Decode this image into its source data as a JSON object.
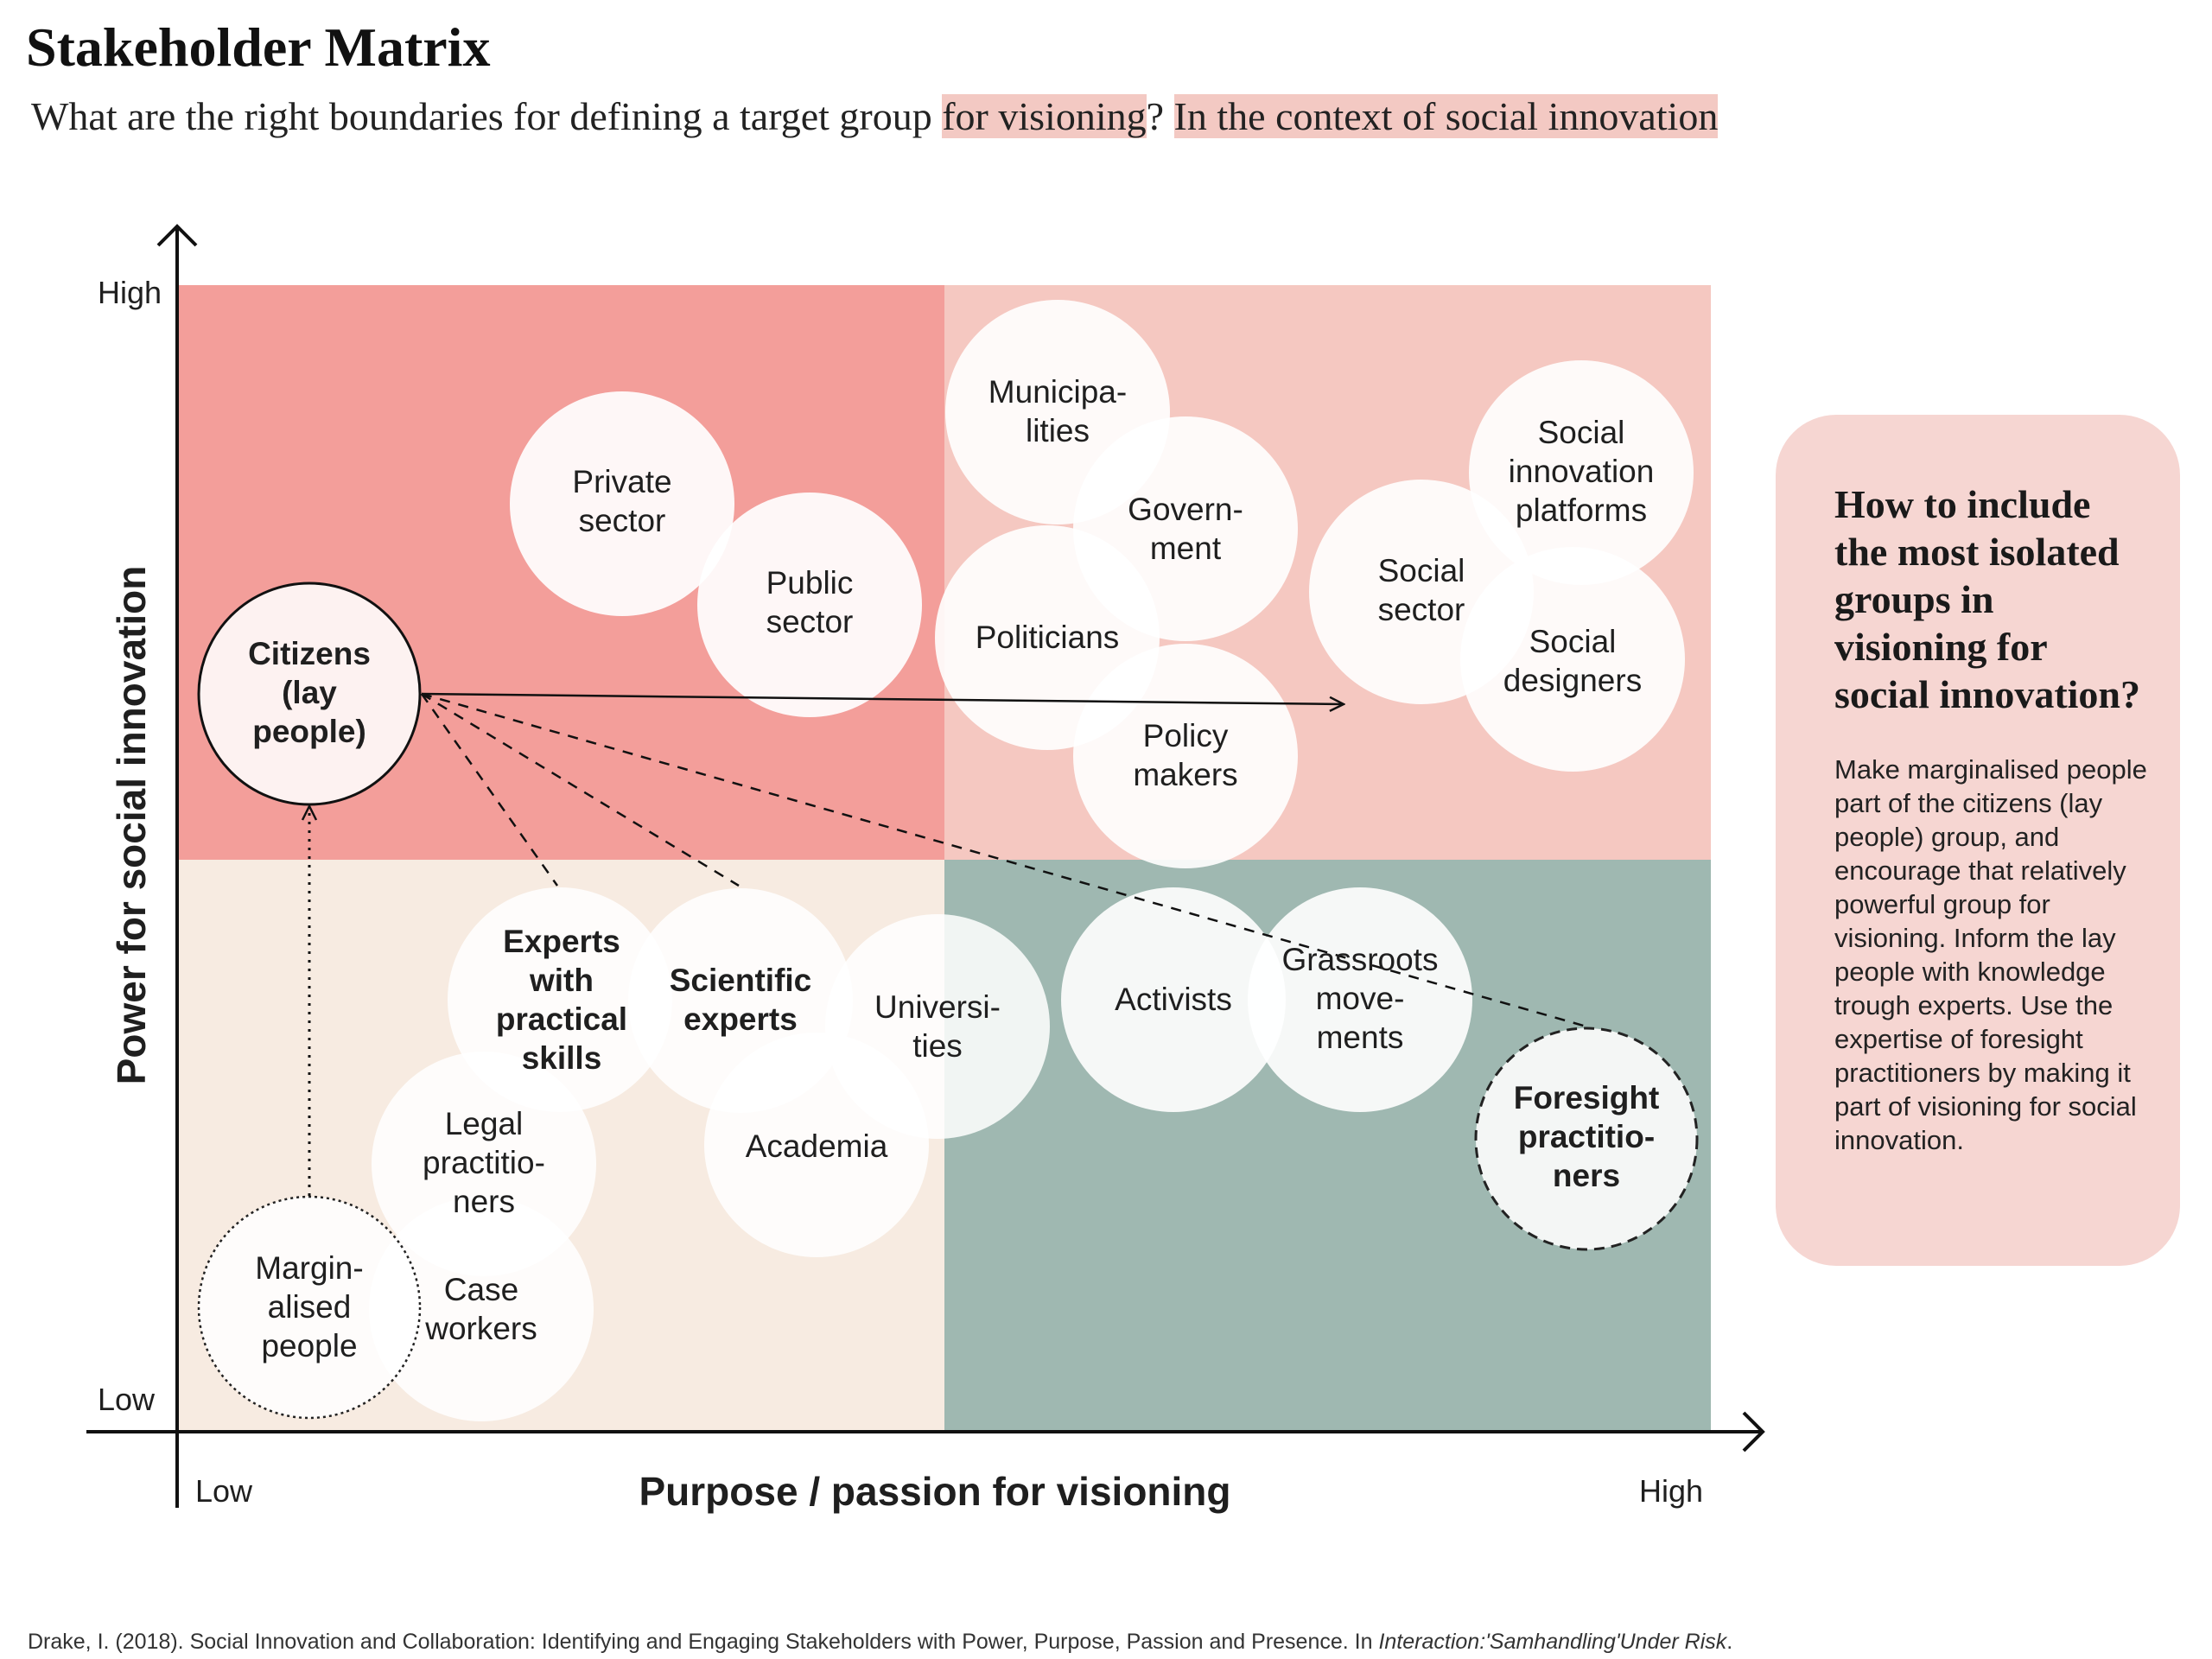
{
  "header": {
    "title": "Stakeholder Matrix",
    "subtitle_part1": "What are the right boundaries for defining a target group ",
    "subtitle_hl1": "for visioning",
    "subtitle_part2": "? ",
    "subtitle_hl2": "In the context of social innovation"
  },
  "axes": {
    "y_label": "Power for social innovation",
    "x_label": "Purpose / passion for visioning",
    "y_high": "High",
    "y_low": "Low",
    "x_low": "Low",
    "x_high": "High"
  },
  "colors": {
    "quadrant_top_left": "#f39e9a",
    "quadrant_top_right": "#f5c8c1",
    "quadrant_bottom_left": "#f7ebe1",
    "quadrant_bottom_right": "#9fb8b1",
    "bubble": "#ffffff",
    "panel": "#f6d6d2"
  },
  "stakeholders": {
    "private_sector": [
      "Private",
      "sector"
    ],
    "public_sector": [
      "Public",
      "sector"
    ],
    "citizens": [
      "Citizens",
      "(lay",
      "people)"
    ],
    "municipalities": [
      "Municipa-",
      "lities"
    ],
    "government": [
      "Govern-",
      "ment"
    ],
    "politicians": [
      "Politicians"
    ],
    "policy_makers": [
      "Policy",
      "makers"
    ],
    "social_sector": [
      "Social",
      "sector"
    ],
    "social_innovation_platforms": [
      "Social",
      "innovation",
      "platforms"
    ],
    "social_designers": [
      "Social",
      "designers"
    ],
    "experts_practical": [
      "Experts",
      "with",
      "practical",
      "skills"
    ],
    "scientific_experts": [
      "Scientific",
      "experts"
    ],
    "universities": [
      "Universi-",
      "ties"
    ],
    "academia": [
      "Academia"
    ],
    "legal_practitioners": [
      "Legal",
      "practitio-",
      "ners"
    ],
    "case_workers": [
      "Case",
      "workers"
    ],
    "marginalised": [
      "Margin-",
      "alised",
      "people"
    ],
    "activists": [
      "Activists"
    ],
    "grassroots": [
      "Grassroots",
      "move-",
      "ments"
    ],
    "foresight": [
      "Foresight",
      "practitio-",
      "ners"
    ]
  },
  "panel": {
    "title": "How to include the most isolated groups in visioning for social innovation?",
    "body": "Make marginalised people part of the citizens (lay people) group, and encourage that relatively powerful group for visioning. Inform the lay people with knowledge trough experts. Use the expertise of foresight practitioners by making it part of visioning for social innovation."
  },
  "citation": {
    "text": "Drake, I. (2018). Social Innovation and Collaboration: Identifying and Engaging Stakeholders with Power, Purpose, Passion and Presence. In ",
    "italic": "Interaction:'Samhandling'Under Risk",
    "end": "."
  }
}
